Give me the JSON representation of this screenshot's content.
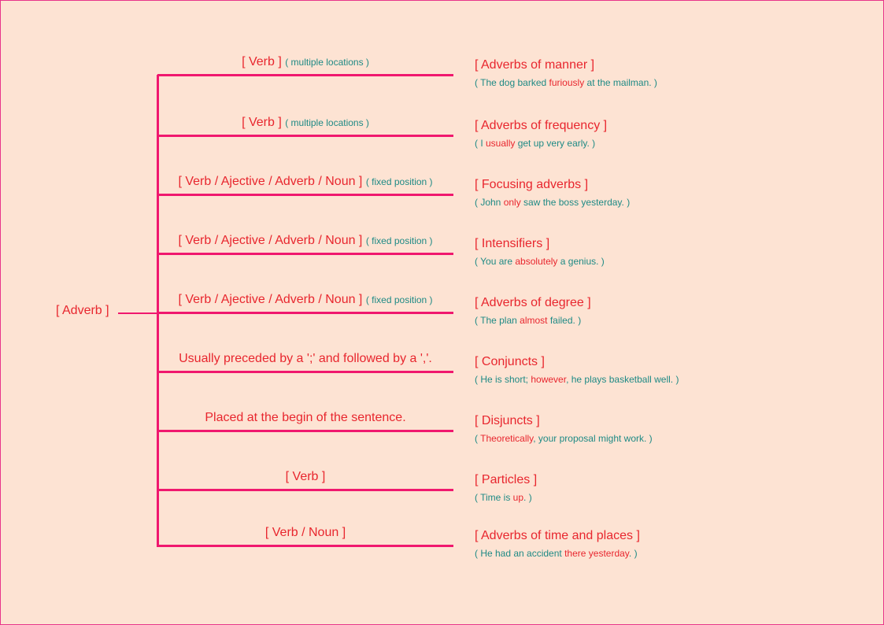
{
  "root": "[ Adverb ]",
  "branches": [
    {
      "usage": "[ Verb ]",
      "note": "( multiple locations )",
      "title": "[ Adverbs of manner ]",
      "ex": [
        "( The dog barked ",
        "furiously",
        " at the mailman. )"
      ]
    },
    {
      "usage": "[ Verb ]",
      "note": "( multiple locations )",
      "title": "[ Adverbs of frequency ]",
      "ex": [
        "( I ",
        "usually",
        " get up very early. )"
      ]
    },
    {
      "usage": "[ Verb / Ajective / Adverb / Noun ]",
      "note": "( fixed position )",
      "title": "[ Focusing adverbs ]",
      "ex": [
        "( John ",
        "only",
        " saw the boss yesterday. )"
      ]
    },
    {
      "usage": "[ Verb / Ajective / Adverb / Noun ]",
      "note": "( fixed position )",
      "title": "[ Intensifiers ]",
      "ex": [
        "( You are ",
        "absolutely",
        " a genius. )"
      ]
    },
    {
      "usage": "[ Verb / Ajective / Adverb / Noun ]",
      "note": "( fixed position )",
      "title": "[ Adverbs of degree ]",
      "ex": [
        "( The plan ",
        "almost",
        " failed. )"
      ]
    },
    {
      "usage": "Usually preceded by a ';' and followed by a ','.",
      "note": "",
      "title": "[ Conjuncts ]",
      "ex": [
        "( He is short; ",
        "however",
        ", he plays basketball well. )"
      ]
    },
    {
      "usage": "Placed at the begin of the sentence.",
      "note": "",
      "title": "[ Disjuncts ]",
      "ex": [
        "( ",
        "Theoretically",
        ", your proposal might work. )"
      ]
    },
    {
      "usage": "[ Verb ]",
      "note": "",
      "title": "[ Particles ]",
      "ex": [
        "( Time is ",
        "up",
        ". )"
      ]
    },
    {
      "usage": "[ Verb / Noun ]",
      "note": "",
      "title": "[ Adverbs of time and places ]",
      "ex": [
        "( He had an accident ",
        "there yesterday",
        ". )"
      ]
    }
  ]
}
